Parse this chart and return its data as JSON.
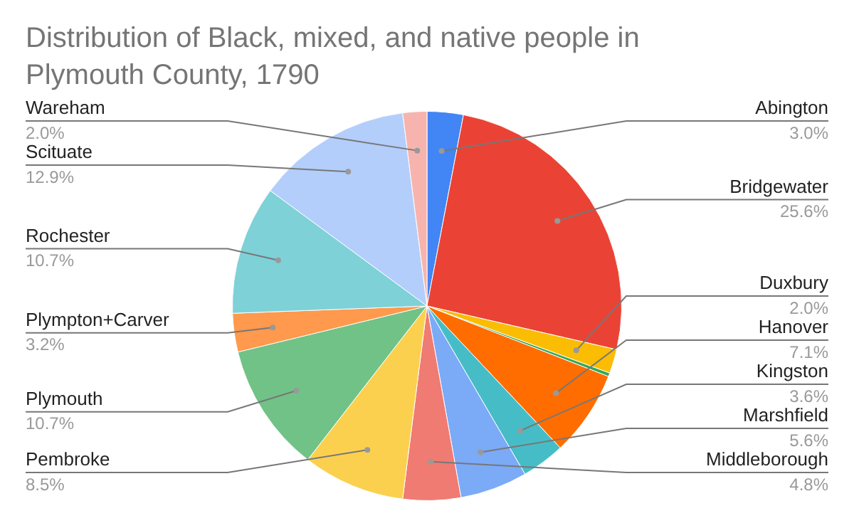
{
  "chart_data": {
    "type": "pie",
    "title": "Distribution of Black, mixed, and native people in Plymouth County, 1790",
    "categories": [
      "Abington",
      "Bridgewater",
      "Duxbury",
      null,
      "Hanover",
      "Kingston",
      "Marshfield",
      "Middleborough",
      "Pembroke",
      "Plymouth",
      "Plympton+Carver",
      "Rochester",
      "Scituate",
      "Wareham"
    ],
    "values": [
      3.0,
      25.6,
      2.0,
      0.3,
      7.1,
      3.6,
      5.6,
      4.8,
      8.5,
      10.7,
      3.2,
      10.7,
      12.9,
      2.0
    ],
    "colors": [
      "#4285f4",
      "#ea4335",
      "#fbbc04",
      "#34a853",
      "#ff6d01",
      "#46bdc6",
      "#7baaf7",
      "#f07b72",
      "#fcd04f",
      "#71c287",
      "#ff994d",
      "#7ed1d7",
      "#b3cefb",
      "#f7b4ae"
    ],
    "value_labels": [
      "3.0%",
      "25.6%",
      "2.0%",
      null,
      "7.1%",
      "3.6%",
      "5.6%",
      "4.8%",
      "8.5%",
      "10.7%",
      "3.2%",
      "10.7%",
      "12.9%",
      "2.0%"
    ],
    "legend": false
  }
}
